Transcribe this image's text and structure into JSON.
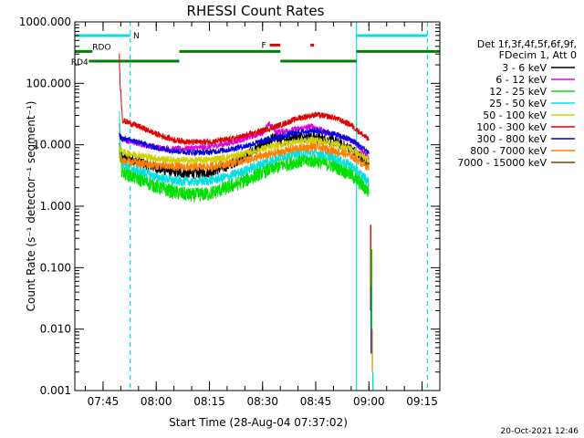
{
  "chart_data": {
    "type": "line",
    "title": "RHESSI Count Rates",
    "xlabel": "Start Time (28-Aug-04 07:37:02)",
    "ylabel": "Count Rate (s⁻¹ detector⁻¹ segment⁻¹)",
    "xlim": [
      "07:37:02",
      "09:20:00"
    ],
    "ylim": [
      0.001,
      1000
    ],
    "yscale": "log",
    "x_ticks": [
      "07:45",
      "08:00",
      "08:15",
      "08:30",
      "08:45",
      "09:00",
      "09:15"
    ],
    "y_ticks": [
      "1000.000",
      "100.000",
      "10.000",
      "1.000",
      "0.100",
      "0.010",
      "0.001"
    ],
    "legend_header": [
      "Det 1f,3f,4f,5f,6f,9f,",
      "FDecim 1, Att 0"
    ],
    "legend_placement": "right",
    "series": [
      {
        "name": "3 - 6 keV",
        "color": "#000000",
        "points": [
          [
            "07:49:35",
            10.0
          ],
          [
            "07:49:50",
            8.0
          ],
          [
            "07:50:30",
            6.5
          ],
          [
            "07:55",
            5.3
          ],
          [
            "08:00",
            4.2
          ],
          [
            "08:05",
            3.6
          ],
          [
            "08:10",
            3.4
          ],
          [
            "08:15",
            3.6
          ],
          [
            "08:20",
            4.5
          ],
          [
            "08:25",
            6.5
          ],
          [
            "08:30",
            10.0
          ],
          [
            "08:33",
            13.0
          ],
          [
            "08:36",
            12.0
          ],
          [
            "08:40",
            14.0
          ],
          [
            "08:45",
            13.0
          ],
          [
            "08:50",
            11.5
          ],
          [
            "08:55",
            8.5
          ],
          [
            "09:00",
            5.0
          ]
        ]
      },
      {
        "name": "6 - 12 keV",
        "color": "#e000e0",
        "points": [
          [
            "07:49:35",
            20.0
          ],
          [
            "07:49:50",
            14.0
          ],
          [
            "07:50:30",
            12.0
          ],
          [
            "07:55",
            10.5
          ],
          [
            "08:00",
            9.0
          ],
          [
            "08:05",
            8.5
          ],
          [
            "08:10",
            8.8
          ],
          [
            "08:15",
            9.2
          ],
          [
            "08:20",
            10.5
          ],
          [
            "08:25",
            12.5
          ],
          [
            "08:30",
            16.0
          ],
          [
            "08:32",
            22.0
          ],
          [
            "08:34",
            16.0
          ],
          [
            "08:40",
            18.0
          ],
          [
            "08:44",
            20.0
          ],
          [
            "08:48",
            16.0
          ],
          [
            "08:52",
            14.0
          ],
          [
            "08:56",
            11.0
          ],
          [
            "09:00",
            6.0
          ]
        ]
      },
      {
        "name": "12 - 25 keV",
        "color": "#00e000",
        "points": [
          [
            "07:49:35",
            8.0
          ],
          [
            "07:49:50",
            5.0
          ],
          [
            "07:50:30",
            3.6
          ],
          [
            "07:55",
            2.8
          ],
          [
            "08:00",
            2.1
          ],
          [
            "08:05",
            1.7
          ],
          [
            "08:10",
            1.5
          ],
          [
            "08:15",
            1.6
          ],
          [
            "08:20",
            2.0
          ],
          [
            "08:25",
            2.6
          ],
          [
            "08:30",
            3.6
          ],
          [
            "08:35",
            4.6
          ],
          [
            "08:40",
            5.4
          ],
          [
            "08:45",
            5.5
          ],
          [
            "08:50",
            4.6
          ],
          [
            "08:55",
            3.3
          ],
          [
            "09:00",
            1.7
          ]
        ]
      },
      {
        "name": "25 - 50 keV",
        "color": "#00e0e0",
        "points": [
          [
            "07:49:35",
            40.0
          ],
          [
            "07:49:50",
            10.0
          ],
          [
            "07:50:30",
            5.0
          ],
          [
            "07:55",
            3.8
          ],
          [
            "08:00",
            3.0
          ],
          [
            "08:05",
            2.6
          ],
          [
            "08:10",
            2.5
          ],
          [
            "08:15",
            2.6
          ],
          [
            "08:20",
            3.0
          ],
          [
            "08:25",
            3.8
          ],
          [
            "08:30",
            5.0
          ],
          [
            "08:35",
            6.4
          ],
          [
            "08:40",
            7.4
          ],
          [
            "08:45",
            7.5
          ],
          [
            "08:50",
            6.2
          ],
          [
            "08:55",
            4.6
          ],
          [
            "09:00",
            2.5
          ]
        ]
      },
      {
        "name": "50 - 100 keV",
        "color": "#d0d000",
        "points": [
          [
            "07:49:35",
            9.0
          ],
          [
            "07:50:30",
            7.5
          ],
          [
            "07:55",
            6.8
          ],
          [
            "08:00",
            6.0
          ],
          [
            "08:05",
            5.6
          ],
          [
            "08:10",
            5.5
          ],
          [
            "08:15",
            5.7
          ],
          [
            "08:20",
            6.2
          ],
          [
            "08:25",
            7.2
          ],
          [
            "08:30",
            8.6
          ],
          [
            "08:35",
            10.0
          ],
          [
            "08:40",
            11.5
          ],
          [
            "08:45",
            12.0
          ],
          [
            "08:50",
            10.5
          ],
          [
            "08:55",
            8.5
          ],
          [
            "09:00",
            5.5
          ]
        ]
      },
      {
        "name": "100 - 300 keV",
        "color": "#e00000",
        "points": [
          [
            "07:49:35",
            280.0
          ],
          [
            "07:49:45",
            120.0
          ],
          [
            "07:50:30",
            25.0
          ],
          [
            "07:55",
            20.0
          ],
          [
            "08:00",
            15.0
          ],
          [
            "08:05",
            12.0
          ],
          [
            "08:10",
            11.0
          ],
          [
            "08:15",
            11.2
          ],
          [
            "08:20",
            12.0
          ],
          [
            "08:25",
            14.0
          ],
          [
            "08:30",
            17.0
          ],
          [
            "08:35",
            21.0
          ],
          [
            "08:40",
            27.0
          ],
          [
            "08:45",
            31.0
          ],
          [
            "08:50",
            28.0
          ],
          [
            "08:55",
            21.0
          ],
          [
            "09:00",
            12.0
          ]
        ]
      },
      {
        "name": "300 - 800 keV",
        "color": "#0000e0",
        "points": [
          [
            "07:49:35",
            14.0
          ],
          [
            "07:50:30",
            12.5
          ],
          [
            "07:55",
            11.0
          ],
          [
            "08:00",
            9.0
          ],
          [
            "08:05",
            8.0
          ],
          [
            "08:10",
            7.5
          ],
          [
            "08:15",
            7.6
          ],
          [
            "08:20",
            8.3
          ],
          [
            "08:25",
            9.5
          ],
          [
            "08:30",
            11.5
          ],
          [
            "08:35",
            13.5
          ],
          [
            "08:40",
            16.0
          ],
          [
            "08:45",
            17.0
          ],
          [
            "08:50",
            15.0
          ],
          [
            "08:55",
            12.0
          ],
          [
            "09:00",
            7.5
          ]
        ]
      },
      {
        "name": "800 - 7000 keV",
        "color": "#ff8000",
        "points": [
          [
            "07:49:35",
            6.5
          ],
          [
            "07:50:30",
            5.4
          ],
          [
            "07:55",
            5.0
          ],
          [
            "08:00",
            4.6
          ],
          [
            "08:05",
            4.4
          ],
          [
            "08:10",
            4.3
          ],
          [
            "08:15",
            4.4
          ],
          [
            "08:20",
            4.9
          ],
          [
            "08:25",
            5.6
          ],
          [
            "08:30",
            6.5
          ],
          [
            "08:35",
            7.6
          ],
          [
            "08:40",
            8.8
          ],
          [
            "08:45",
            9.3
          ],
          [
            "08:50",
            8.0
          ],
          [
            "08:55",
            6.6
          ],
          [
            "09:00",
            4.2
          ]
        ]
      },
      {
        "name": "7000 - 15000 keV",
        "color": "#804000",
        "points": []
      }
    ],
    "vertical_markers": [
      {
        "time": "07:52:40",
        "color": "#00e0e0",
        "style": "dashed"
      },
      {
        "time": "08:56:30",
        "color": "#00e0e0",
        "style": "solid"
      },
      {
        "time": "09:16:30",
        "color": "#00e0e0",
        "style": "dashed"
      }
    ],
    "flag_bars": [
      {
        "label": "N",
        "color": "#00e0e0",
        "segments": [
          [
            "07:37:02",
            "07:52:40"
          ],
          [
            "08:56:30",
            "09:16:30"
          ]
        ],
        "level": 600
      },
      {
        "label": "F",
        "color": "#e00000",
        "segments": [
          [
            "08:32:00",
            "08:35:00"
          ],
          [
            "08:43:30",
            "08:44:30"
          ]
        ],
        "level": 420
      },
      {
        "label": "RDO",
        "color": "#008000",
        "segments": [
          [
            "07:37:02",
            "07:42:00"
          ],
          [
            "08:06:30",
            "08:35:00"
          ],
          [
            "08:56:30",
            "09:20:00"
          ]
        ],
        "level": 330
      },
      {
        "label": "RD4",
        "color": "#008000",
        "segments": [
          [
            "07:41:00",
            "08:06:30"
          ],
          [
            "08:35:00",
            "08:56:30"
          ]
        ],
        "level": 230
      }
    ],
    "post_flare_drop": {
      "time": "09:00:30",
      "colors": [
        "#e00000",
        "#0000e0",
        "#00e000",
        "#e0a000",
        "#00e0e0"
      ]
    }
  },
  "footer_timestamp": "20-Oct-2021 12:46"
}
